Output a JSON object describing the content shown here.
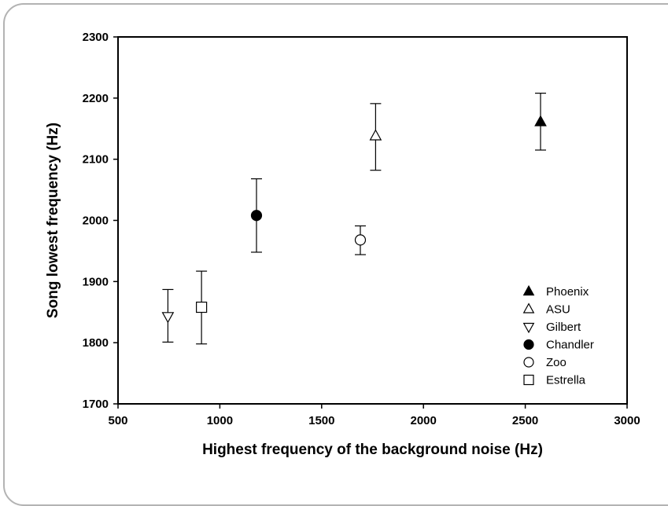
{
  "chart_data": {
    "type": "scatter",
    "title": "",
    "xlabel": "Highest frequency of the background noise (Hz)",
    "ylabel": "Song lowest frequency (Hz)",
    "xlim": [
      500,
      3000
    ],
    "ylim": [
      1700,
      2300
    ],
    "xticks": [
      500,
      1000,
      1500,
      2000,
      2500,
      3000
    ],
    "yticks": [
      1700,
      1800,
      1900,
      2000,
      2100,
      2200,
      2300
    ],
    "grid": false,
    "legend_position": "bottom-right",
    "series": [
      {
        "name": "Phoenix",
        "marker": "triangle-up-filled",
        "x": 2575,
        "y": 2161,
        "y_low": 2115,
        "y_high": 2208
      },
      {
        "name": "ASU",
        "marker": "triangle-up-open",
        "x": 1765,
        "y": 2138,
        "y_low": 2082,
        "y_high": 2191
      },
      {
        "name": "Gilbert",
        "marker": "triangle-down-open",
        "x": 745,
        "y": 1843,
        "y_low": 1801,
        "y_high": 1887
      },
      {
        "name": "Chandler",
        "marker": "circle-filled",
        "x": 1180,
        "y": 2008,
        "y_low": 1948,
        "y_high": 2068
      },
      {
        "name": "Zoo",
        "marker": "circle-open",
        "x": 1690,
        "y": 1968,
        "y_low": 1944,
        "y_high": 1991
      },
      {
        "name": "Estrella",
        "marker": "square-open",
        "x": 910,
        "y": 1858,
        "y_low": 1798,
        "y_high": 1917
      }
    ]
  }
}
